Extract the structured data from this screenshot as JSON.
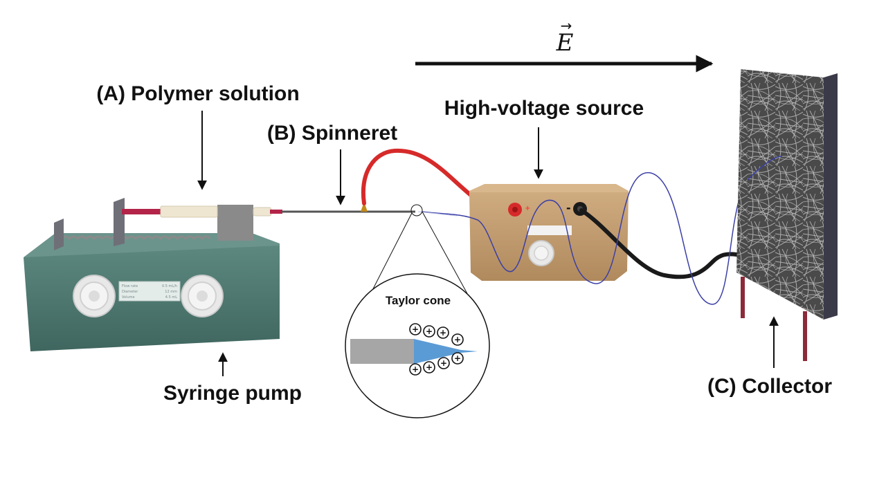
{
  "field": {
    "vector_symbol": "E",
    "arrow_mark": "→"
  },
  "labels": {
    "polymer_solution": "(A) Polymer solution",
    "spinneret": "(B) Spinneret",
    "high_voltage_source": "High-voltage source",
    "syringe_pump": "Syringe pump",
    "collector": "(C) Collector",
    "taylor_cone": "Taylor cone"
  },
  "pump_display": {
    "lines": [
      {
        "name": "Flow rate",
        "value": "0.5 mL/h"
      },
      {
        "name": "Diameter",
        "value": "12 mm"
      },
      {
        "name": "Volume",
        "value": "4.5 mL"
      }
    ]
  },
  "power_terminals": {
    "positive": "+",
    "negative": "-"
  },
  "charge_symbol": "+",
  "colors": {
    "pump_body": "#4f7a72",
    "power_box": "#c9a478",
    "positive_cable": "#d62a2a",
    "negative_cable": "#1a1a1a",
    "jet": "#3b3fa6",
    "taylor_cone": "#5b9bd5",
    "needle": "#a6a6a6",
    "collector_mat": "#555555",
    "collector_legs": "#8c2a3a"
  }
}
